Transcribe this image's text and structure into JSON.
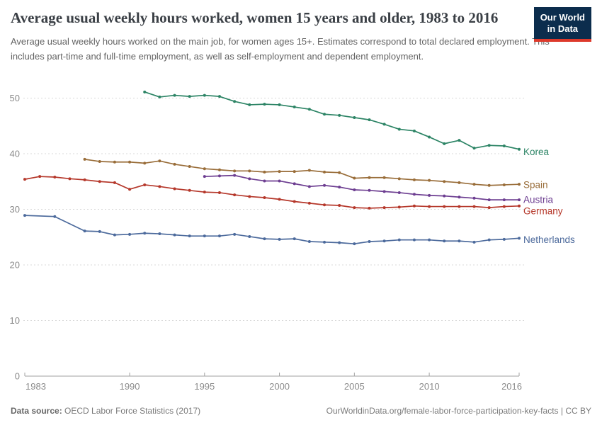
{
  "header": {
    "title": "Average usual weekly hours worked, women 15 years and older, 1983 to 2016",
    "subtitle": "Average usual weekly hours worked on the main job, for women ages 15+. Estimates correspond to total declared employment. This includes part-time and full-time employment, as well as self-employment and dependent employment."
  },
  "logo": {
    "line1": "Our World",
    "line2": "in Data",
    "bg_color": "#0c2d4d",
    "bar_color": "#dd392b"
  },
  "footer": {
    "source_label": "Data source:",
    "source_value": " OECD Labor Force Statistics (2017)",
    "link": "OurWorldinData.org/female-labor-force-participation-key-facts | CC BY"
  },
  "chart_data": {
    "type": "line",
    "title": "Average usual weekly hours worked, women 15 years and older, 1983 to 2016",
    "xlabel": "",
    "ylabel": "",
    "xlim": [
      1983,
      2016
    ],
    "ylim": [
      0,
      52.5
    ],
    "x_ticks": [
      1983,
      1990,
      1995,
      2000,
      2005,
      2010,
      2016
    ],
    "y_ticks": [
      0,
      10,
      20,
      30,
      40,
      50
    ],
    "grid": "horizontal-dashed",
    "legend_position": "right-of-line-end",
    "marker": "dot",
    "axis_color": "#a1a1a1",
    "grid_color": "#d9d9d9",
    "tick_label_color": "#8b8b8b",
    "series": [
      {
        "name": "Korea",
        "color": "#2C8465",
        "points": [
          [
            1991,
            51.1
          ],
          [
            1992,
            50.2
          ],
          [
            1993,
            50.5
          ],
          [
            1994,
            50.3
          ],
          [
            1995,
            50.5
          ],
          [
            1996,
            50.3
          ],
          [
            1997,
            49.4
          ],
          [
            1998,
            48.8
          ],
          [
            1999,
            48.9
          ],
          [
            2000,
            48.8
          ],
          [
            2001,
            48.4
          ],
          [
            2002,
            48.0
          ],
          [
            2003,
            47.1
          ],
          [
            2004,
            46.9
          ],
          [
            2005,
            46.5
          ],
          [
            2006,
            46.1
          ],
          [
            2007,
            45.3
          ],
          [
            2008,
            44.4
          ],
          [
            2009,
            44.1
          ],
          [
            2010,
            43.0
          ],
          [
            2011,
            41.8
          ],
          [
            2012,
            42.4
          ],
          [
            2013,
            41.0
          ],
          [
            2014,
            41.5
          ],
          [
            2015,
            41.4
          ],
          [
            2016,
            40.8
          ]
        ]
      },
      {
        "name": "Spain",
        "color": "#996D39",
        "points": [
          [
            1987,
            39.0
          ],
          [
            1988,
            38.6
          ],
          [
            1989,
            38.5
          ],
          [
            1990,
            38.5
          ],
          [
            1991,
            38.3
          ],
          [
            1992,
            38.7
          ],
          [
            1993,
            38.1
          ],
          [
            1994,
            37.7
          ],
          [
            1995,
            37.3
          ],
          [
            1996,
            37.1
          ],
          [
            1997,
            36.9
          ],
          [
            1998,
            36.9
          ],
          [
            1999,
            36.7
          ],
          [
            2000,
            36.8
          ],
          [
            2001,
            36.8
          ],
          [
            2002,
            37.0
          ],
          [
            2003,
            36.7
          ],
          [
            2004,
            36.6
          ],
          [
            2005,
            35.6
          ],
          [
            2006,
            35.7
          ],
          [
            2007,
            35.7
          ],
          [
            2008,
            35.5
          ],
          [
            2009,
            35.3
          ],
          [
            2010,
            35.2
          ],
          [
            2011,
            35.0
          ],
          [
            2012,
            34.8
          ],
          [
            2013,
            34.5
          ],
          [
            2014,
            34.3
          ],
          [
            2015,
            34.4
          ],
          [
            2016,
            34.5
          ]
        ]
      },
      {
        "name": "Austria",
        "color": "#6D3E91",
        "points": [
          [
            1995,
            35.9
          ],
          [
            1996,
            36.0
          ],
          [
            1997,
            36.1
          ],
          [
            1998,
            35.5
          ],
          [
            1999,
            35.1
          ],
          [
            2000,
            35.1
          ],
          [
            2001,
            34.6
          ],
          [
            2002,
            34.1
          ],
          [
            2003,
            34.3
          ],
          [
            2004,
            34.0
          ],
          [
            2005,
            33.5
          ],
          [
            2006,
            33.4
          ],
          [
            2007,
            33.2
          ],
          [
            2008,
            33.0
          ],
          [
            2009,
            32.7
          ],
          [
            2010,
            32.5
          ],
          [
            2011,
            32.4
          ],
          [
            2012,
            32.2
          ],
          [
            2013,
            32.0
          ],
          [
            2014,
            31.7
          ],
          [
            2015,
            31.7
          ],
          [
            2016,
            31.7
          ]
        ]
      },
      {
        "name": "Germany",
        "color": "#B5372A",
        "points": [
          [
            1983,
            35.4
          ],
          [
            1984,
            35.9
          ],
          [
            1985,
            35.8
          ],
          [
            1986,
            35.5
          ],
          [
            1987,
            35.3
          ],
          [
            1988,
            35.0
          ],
          [
            1989,
            34.8
          ],
          [
            1990,
            33.6
          ],
          [
            1991,
            34.4
          ],
          [
            1992,
            34.1
          ],
          [
            1993,
            33.7
          ],
          [
            1994,
            33.4
          ],
          [
            1995,
            33.1
          ],
          [
            1996,
            33.0
          ],
          [
            1997,
            32.6
          ],
          [
            1998,
            32.3
          ],
          [
            1999,
            32.1
          ],
          [
            2000,
            31.8
          ],
          [
            2001,
            31.4
          ],
          [
            2002,
            31.1
          ],
          [
            2003,
            30.8
          ],
          [
            2004,
            30.7
          ],
          [
            2005,
            30.3
          ],
          [
            2006,
            30.2
          ],
          [
            2007,
            30.3
          ],
          [
            2008,
            30.4
          ],
          [
            2009,
            30.6
          ],
          [
            2010,
            30.5
          ],
          [
            2011,
            30.5
          ],
          [
            2012,
            30.5
          ],
          [
            2013,
            30.5
          ],
          [
            2014,
            30.3
          ],
          [
            2015,
            30.5
          ],
          [
            2016,
            30.6
          ]
        ]
      },
      {
        "name": "Netherlands",
        "color": "#4C6A9C",
        "points": [
          [
            1983,
            28.9
          ],
          [
            1985,
            28.7
          ],
          [
            1987,
            26.1
          ],
          [
            1988,
            26.0
          ],
          [
            1989,
            25.4
          ],
          [
            1990,
            25.5
          ],
          [
            1991,
            25.7
          ],
          [
            1992,
            25.6
          ],
          [
            1993,
            25.4
          ],
          [
            1994,
            25.2
          ],
          [
            1995,
            25.2
          ],
          [
            1996,
            25.2
          ],
          [
            1997,
            25.5
          ],
          [
            1998,
            25.1
          ],
          [
            1999,
            24.7
          ],
          [
            2000,
            24.6
          ],
          [
            2001,
            24.7
          ],
          [
            2002,
            24.2
          ],
          [
            2003,
            24.1
          ],
          [
            2004,
            24.0
          ],
          [
            2005,
            23.8
          ],
          [
            2006,
            24.2
          ],
          [
            2007,
            24.3
          ],
          [
            2008,
            24.5
          ],
          [
            2009,
            24.5
          ],
          [
            2010,
            24.5
          ],
          [
            2011,
            24.3
          ],
          [
            2012,
            24.3
          ],
          [
            2013,
            24.1
          ],
          [
            2014,
            24.5
          ],
          [
            2015,
            24.6
          ],
          [
            2016,
            24.8
          ]
        ]
      }
    ]
  }
}
